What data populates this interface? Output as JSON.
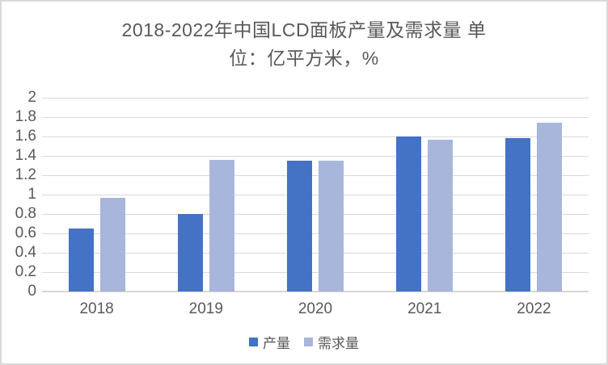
{
  "title": {
    "lines": [
      "2018-2022年中国LCD面板产量及需求量 单",
      "位：亿平方米，%"
    ],
    "full": "2018-2022年中国LCD面板产量及需求量 单位：亿平方米，%"
  },
  "chart_data": {
    "type": "bar",
    "title": "2018-2022年中国LCD面板产量及需求量 单位：亿平方米，%",
    "categories": [
      "2018",
      "2019",
      "2020",
      "2021",
      "2022"
    ],
    "series": [
      {
        "name": "产量",
        "color": "#4472C4",
        "values": [
          0.65,
          0.8,
          1.35,
          1.6,
          1.58
        ]
      },
      {
        "name": "需求量",
        "color": "#A9B6DB",
        "values": [
          0.97,
          1.36,
          1.35,
          1.57,
          1.74
        ]
      }
    ],
    "xlabel": "",
    "ylabel": "",
    "ylim": [
      0,
      2
    ],
    "ytick_labels": [
      "0",
      "0.2",
      "0.4",
      "0.6",
      "0.8",
      "1",
      "1.2",
      "1.4",
      "1.6",
      "1.8",
      "2"
    ],
    "grid": true,
    "legend_position": "bottom"
  },
  "colors": {
    "text": "#595959",
    "gridline": "#D9D9D9",
    "border": "#D9D9D9",
    "background": "#FFFFFF"
  }
}
